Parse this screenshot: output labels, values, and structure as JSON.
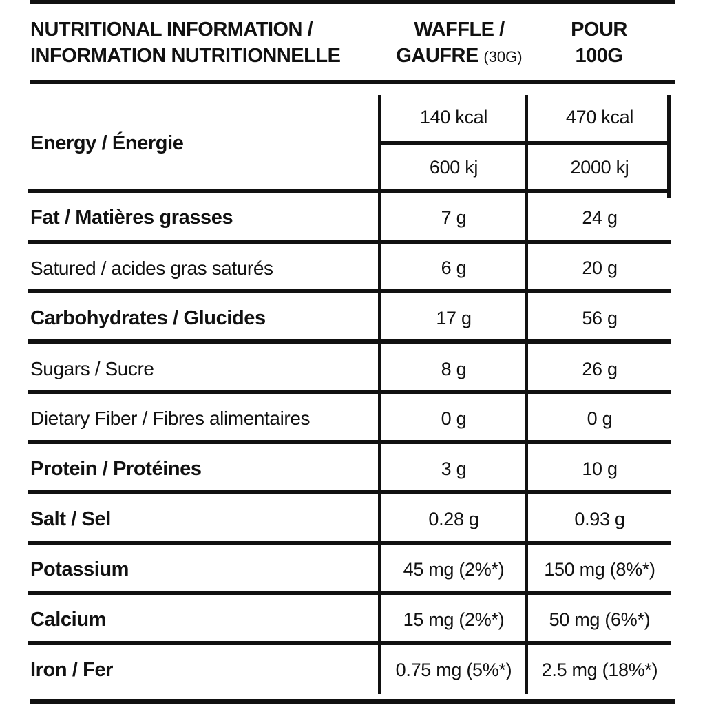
{
  "header": {
    "title_line1": "NUTRITIONAL INFORMATION /",
    "title_line2": "INFORMATION NUTRITIONNELLE",
    "col1_line1": "WAFFLE /",
    "col1_line2": "GAUFRE",
    "col1_serving": "(30G)",
    "col2_line1": "POUR",
    "col2_line2": "100G"
  },
  "energy": {
    "label": "Energy / Énergie",
    "kcal_serving": "140 kcal",
    "kcal_100g": "470 kcal",
    "kj_serving": "600 kj",
    "kj_100g": "2000 kj"
  },
  "rows": [
    {
      "label": "Fat / Matières grasses",
      "serving": "7 g",
      "per100": "24 g",
      "bold": true
    },
    {
      "label": "Satured / acides gras saturés",
      "serving": "6 g",
      "per100": "20 g",
      "bold": false
    },
    {
      "label": "Carbohydrates / Glucides",
      "serving": "17 g",
      "per100": "56 g",
      "bold": true
    },
    {
      "label": "Sugars / Sucre",
      "serving": "8 g",
      "per100": "26 g",
      "bold": false
    },
    {
      "label": "Dietary Fiber / Fibres alimentaires",
      "serving": "0 g",
      "per100": "0 g",
      "bold": false
    },
    {
      "label": "Protein / Protéines",
      "serving": "3 g",
      "per100": "10 g",
      "bold": true
    },
    {
      "label": "Salt / Sel",
      "serving": "0.28 g",
      "per100": "0.93 g",
      "bold": true
    },
    {
      "label": "Potassium",
      "serving": "45 mg (2%*)",
      "per100": "150 mg (8%*)",
      "bold": true
    },
    {
      "label": "Calcium",
      "serving": "15 mg (2%*)",
      "per100": "50 mg (6%*)",
      "bold": true
    },
    {
      "label": "Iron / Fer",
      "serving": "0.75 mg (5%*)",
      "per100": "2.5 mg (18%*)",
      "bold": true
    }
  ]
}
